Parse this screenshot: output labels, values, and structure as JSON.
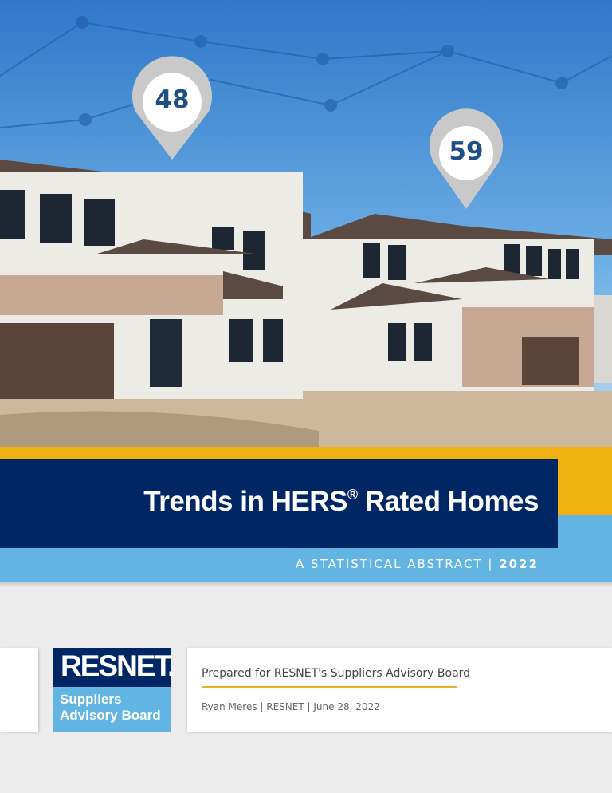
{
  "photo": {
    "pins": [
      "48",
      "59"
    ]
  },
  "title": {
    "main": "Trends in HERS",
    "reg": "®",
    "rest": " Rated Homes"
  },
  "subtitle": {
    "text": "A STATISTICAL ABSTRACT | ",
    "year": "2022"
  },
  "logo": {
    "name": "RESNET.",
    "line1": "Suppliers",
    "line2": "Advisory Board"
  },
  "card": {
    "prepared": "Prepared for RESNET's Suppliers Advisory Board",
    "byline": "Ryan Meres | RESNET | June 28, 2022"
  },
  "colors": {
    "navy": "#002664",
    "yellow": "#efb10f",
    "light_blue": "#62b4e3"
  }
}
